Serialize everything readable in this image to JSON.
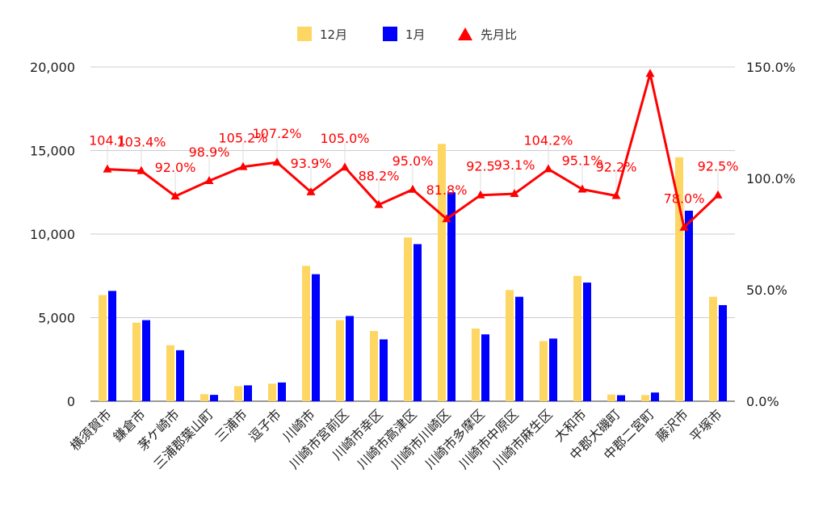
{
  "chart_data": {
    "type": "bar",
    "categories": [
      "横須賀市",
      "鎌倉市",
      "茅ケ崎市",
      "三浦郡葉山町",
      "三浦市",
      "逗子市",
      "川崎市",
      "川崎市宮前区",
      "川崎市幸区",
      "川崎市高津区",
      "川崎市川崎区",
      "川崎市多摩区",
      "川崎市中原区",
      "川崎市麻生区",
      "大和市",
      "中郡大磯町",
      "中郡二宮町",
      "藤沢市",
      "平塚市"
    ],
    "series": [
      {
        "name": "12月",
        "axis": "left",
        "color": "#fdd663",
        "values": [
          6350,
          4700,
          3350,
          420,
          900,
          1050,
          8100,
          4850,
          4200,
          9800,
          15400,
          4350,
          6650,
          3600,
          7500,
          400,
          370,
          14600,
          6250
        ]
      },
      {
        "name": "1月",
        "axis": "left",
        "color": "#0000ff",
        "values": [
          6600,
          4850,
          3050,
          380,
          950,
          1120,
          7600,
          5100,
          3700,
          9400,
          12500,
          4000,
          6250,
          3750,
          7100,
          360,
          520,
          11400,
          5750
        ]
      },
      {
        "name": "先月比",
        "axis": "right",
        "type": "line",
        "color": "#ff0000",
        "values": [
          104.1,
          103.4,
          92.0,
          98.9,
          105.2,
          107.2,
          93.9,
          105.0,
          88.2,
          95.0,
          81.8,
          92.5,
          93.1,
          104.2,
          95.1,
          92.2,
          147.0,
          78.0,
          92.5
        ],
        "labels": [
          "104.1",
          "103.4%",
          "92.0%",
          "98.9%",
          "105.2%",
          "107.2%",
          "93.9%",
          "105.0%",
          "88.2%",
          "95.0%",
          "81.8%",
          "92.5",
          "93.1%",
          "104.2%",
          "95.1%",
          "92.2%",
          "",
          "78.0%",
          "92.5%"
        ]
      }
    ],
    "left_axis": {
      "min": 0,
      "max": 20000,
      "ticks": [
        "0",
        "5,000",
        "10,000",
        "15,000",
        "20,000"
      ]
    },
    "right_axis": {
      "min": 0,
      "max": 150,
      "ticks": [
        "0.0%",
        "50.0%",
        "100.0%",
        "150.0%"
      ]
    },
    "legend_position": "top-center",
    "grid": true
  }
}
